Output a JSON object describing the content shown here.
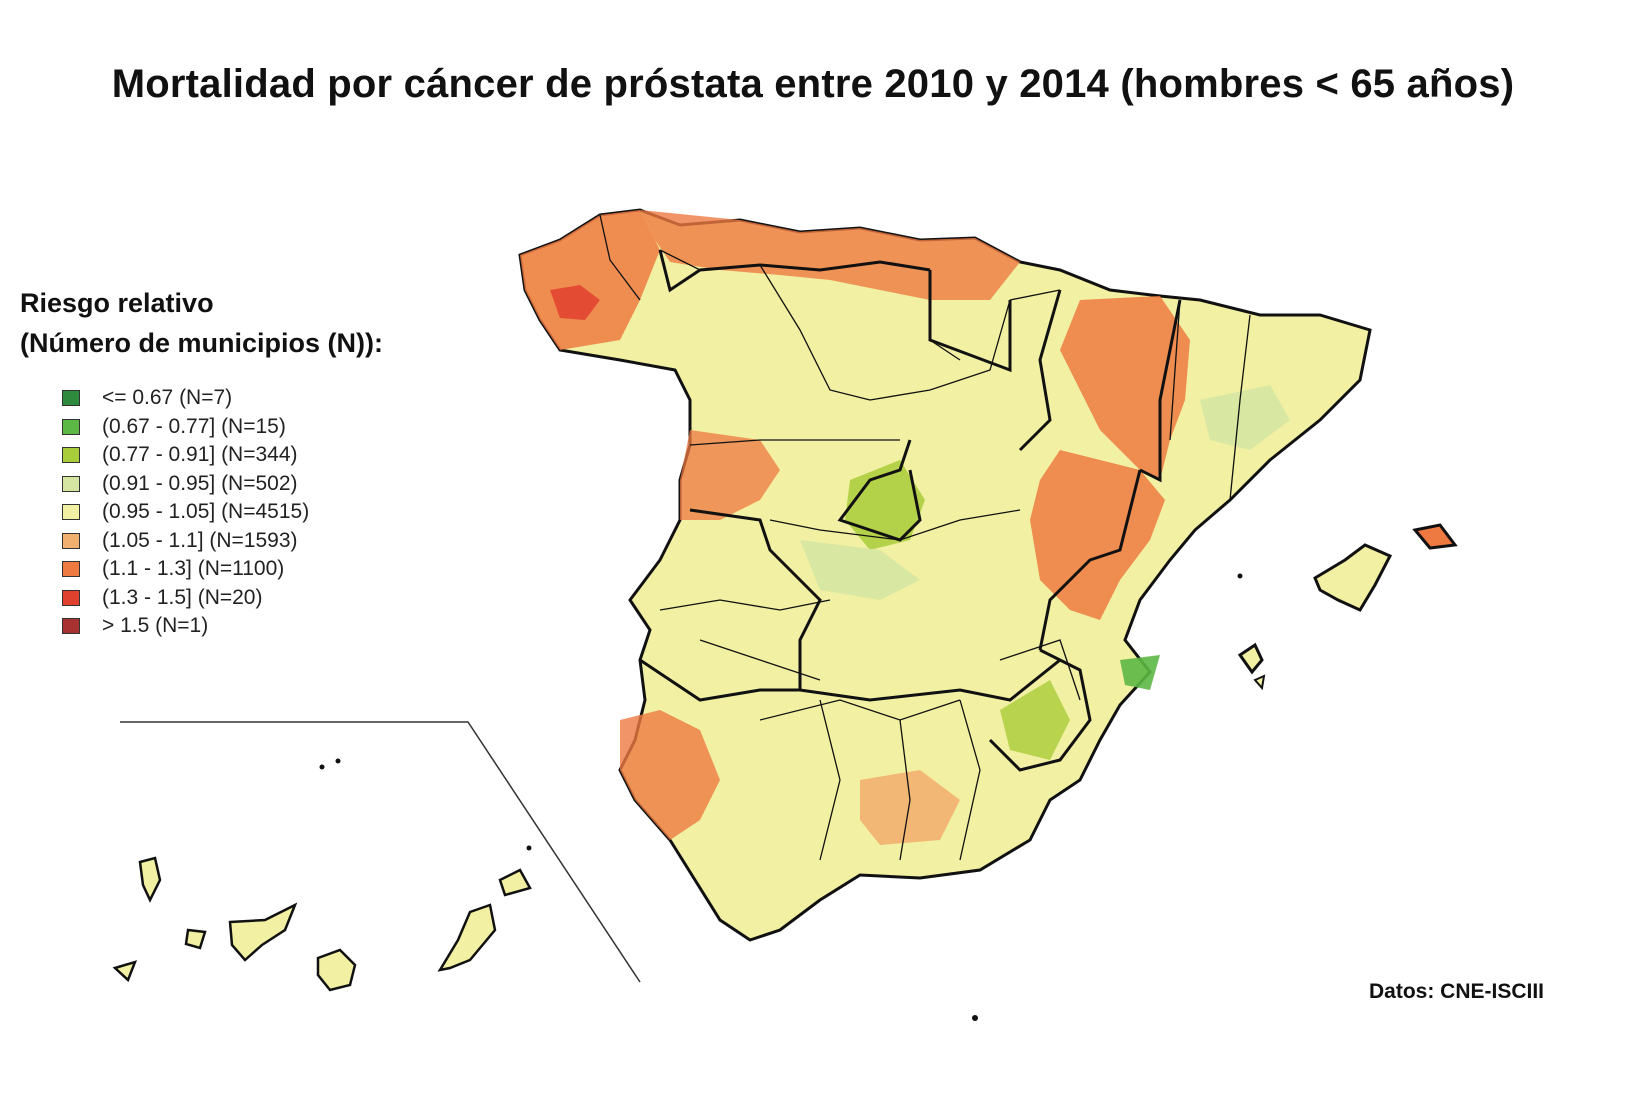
{
  "title": "Mortalidad por cáncer de próstata entre 2010 y 2014 (hombres < 65 años)",
  "legend": {
    "title_line1": "Riesgo relativo",
    "title_line2": "(Número de municipios (N)):",
    "items": [
      {
        "label": "<=  0.67 (N=7)",
        "color": "#2e8b3e"
      },
      {
        "label": "(0.67 - 0.77] (N=15)",
        "color": "#5cb845"
      },
      {
        "label": "(0.77 - 0.91] (N=344)",
        "color": "#a9cc3a"
      },
      {
        "label": "(0.91 - 0.95] (N=502)",
        "color": "#d5e6a2"
      },
      {
        "label": "(0.95 - 1.05] (N=4515)",
        "color": "#f2f0a2"
      },
      {
        "label": "(1.05 - 1.1] (N=1593)",
        "color": "#f2b070"
      },
      {
        "label": "(1.1 - 1.3] (N=1100)",
        "color": "#ee7a42"
      },
      {
        "label": "(1.3 - 1.5] (N=20)",
        "color": "#e0412e"
      },
      {
        "label": " >  1.5 (N=1)",
        "color": "#a83232"
      }
    ]
  },
  "source": "Datos: CNE-ISCIII"
}
